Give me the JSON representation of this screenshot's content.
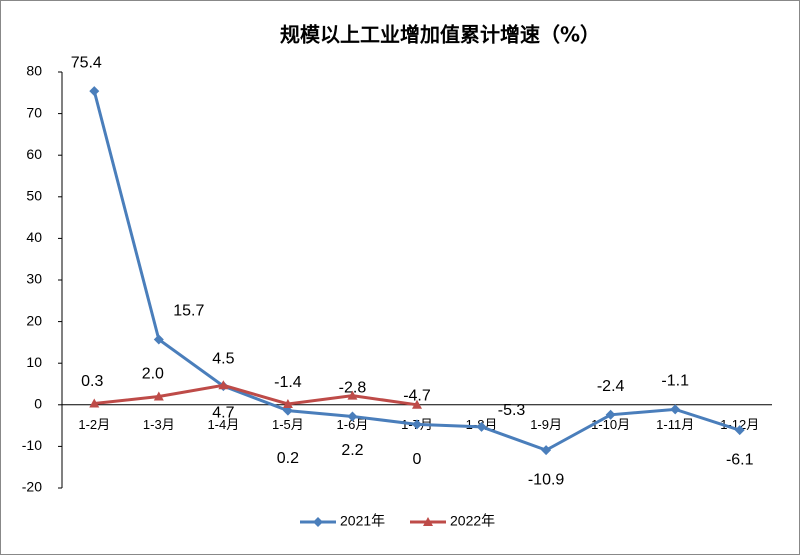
{
  "chart_data": {
    "type": "line",
    "title": "规模以上工业增加值累计增速（%）",
    "categories": [
      "1-2月",
      "1-3月",
      "1-4月",
      "1-5月",
      "1-6月",
      "1-7月",
      "1-8月",
      "1-9月",
      "1-10月",
      "1-11月",
      "1-12月"
    ],
    "series": [
      {
        "name": "2021年",
        "color": "#4a7ebb",
        "values": [
          75.4,
          15.7,
          4.5,
          -1.4,
          -2.8,
          -4.7,
          -5.3,
          -10.9,
          -2.4,
          -1.1,
          -6.1
        ]
      },
      {
        "name": "2022年",
        "color": "#be4b48",
        "values": [
          0.3,
          2.0,
          4.7,
          0.2,
          2.2,
          0,
          null,
          null,
          null,
          null,
          null
        ],
        "value_labels": [
          "0.3",
          "2.0",
          "4.7",
          "0.2",
          "2.2",
          "0",
          null,
          null,
          null,
          null,
          null
        ]
      }
    ],
    "ylim": [
      -20,
      80
    ],
    "yticks": [
      -20,
      -10,
      0,
      10,
      20,
      30,
      40,
      50,
      60,
      70,
      80
    ],
    "legend": "bottom"
  }
}
